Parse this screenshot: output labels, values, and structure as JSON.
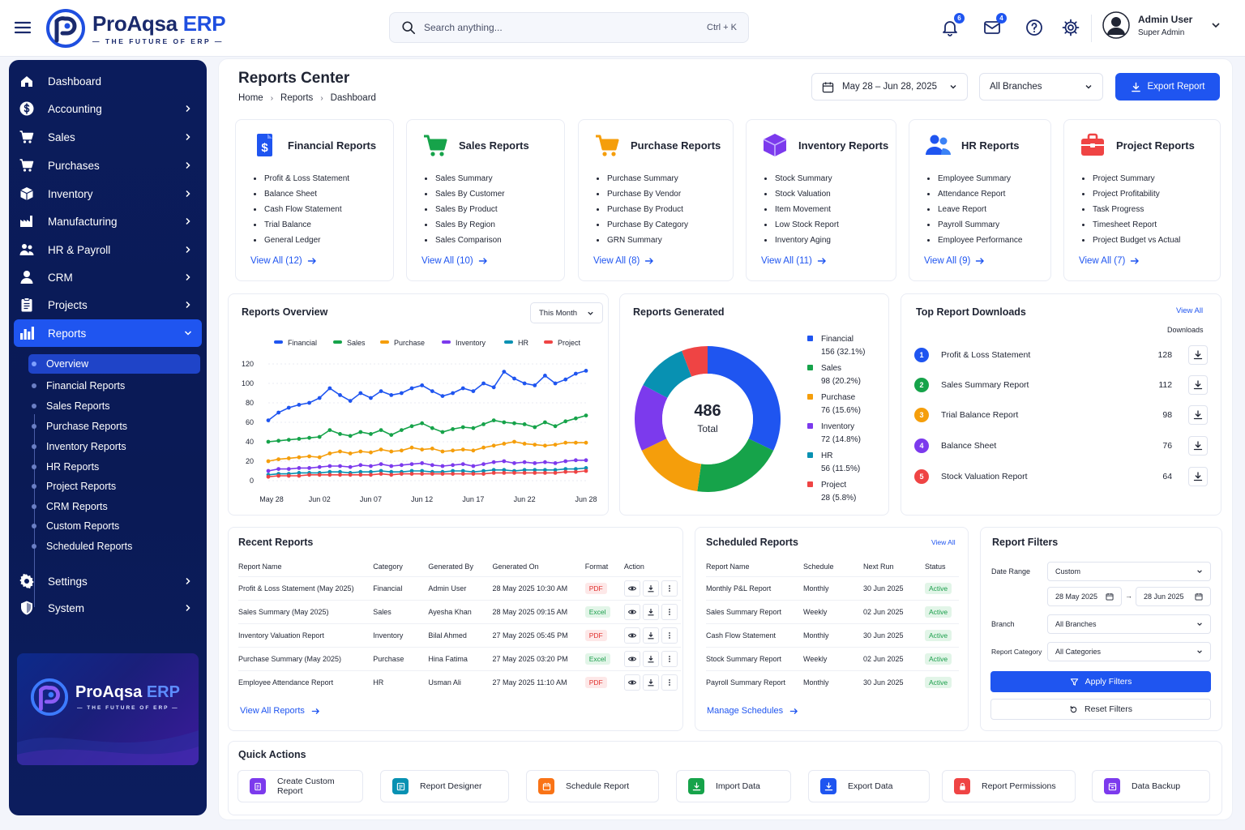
{
  "app": {
    "brand_main": "ProAqsa",
    "brand_accent": "ERP",
    "tagline": "— THE FUTURE OF ERP —"
  },
  "search": {
    "placeholder": "Search anything...",
    "shortcut": "Ctrl + K"
  },
  "notifications": {
    "bell_count": "6",
    "mail_count": "4"
  },
  "user": {
    "name": "Admin User",
    "role": "Super Admin"
  },
  "sidebar": {
    "items": [
      {
        "label": "Dashboard",
        "icon": "home-icon"
      },
      {
        "label": "Accounting",
        "icon": "dollar-icon"
      },
      {
        "label": "Sales",
        "icon": "cart-icon"
      },
      {
        "label": "Purchases",
        "icon": "cart-icon"
      },
      {
        "label": "Inventory",
        "icon": "box-icon"
      },
      {
        "label": "Manufacturing",
        "icon": "factory-icon"
      },
      {
        "label": "HR & Payroll",
        "icon": "people-icon"
      },
      {
        "label": "CRM",
        "icon": "person-icon"
      },
      {
        "label": "Projects",
        "icon": "clipboard-icon"
      },
      {
        "label": "Reports",
        "icon": "bar-chart-icon"
      }
    ],
    "reports_sub": [
      "Overview",
      "Financial Reports",
      "Sales Reports",
      "Purchase Reports",
      "Inventory Reports",
      "HR Reports",
      "Project Reports",
      "CRM Reports",
      "Custom Reports",
      "Scheduled Reports"
    ],
    "bottom_items": [
      {
        "label": "Settings",
        "icon": "gear-icon"
      },
      {
        "label": "System",
        "icon": "shield-icon"
      }
    ]
  },
  "page": {
    "title": "Reports Center",
    "breadcrumb": [
      "Home",
      "Reports",
      "Dashboard"
    ]
  },
  "controls": {
    "date_range": "May 28 – Jun 28, 2025",
    "branch": "All Branches",
    "export": "Export Report"
  },
  "report_cards": [
    {
      "title": "Financial Reports",
      "color": "#1f55f0",
      "items": [
        "Profit & Loss Statement",
        "Balance Sheet",
        "Cash Flow Statement",
        "Trial Balance",
        "General Ledger"
      ],
      "view_all": "View All (12)"
    },
    {
      "title": "Sales Reports",
      "color": "#16a34a",
      "items": [
        "Sales Summary",
        "Sales By Customer",
        "Sales By Product",
        "Sales By Region",
        "Sales Comparison"
      ],
      "view_all": "View All (10)"
    },
    {
      "title": "Purchase Reports",
      "color": "#f59e0b",
      "items": [
        "Purchase Summary",
        "Purchase By Vendor",
        "Purchase By Product",
        "Purchase By Category",
        "GRN Summary"
      ],
      "view_all": "View All (8)"
    },
    {
      "title": "Inventory Reports",
      "color": "#7c3aed",
      "items": [
        "Stock Summary",
        "Stock Valuation",
        "Item Movement",
        "Low Stock Report",
        "Inventory Aging"
      ],
      "view_all": "View All (11)"
    },
    {
      "title": "HR Reports",
      "color": "#1f55f0",
      "items": [
        "Employee Summary",
        "Attendance Report",
        "Leave Report",
        "Payroll Summary",
        "Employee Performance"
      ],
      "view_all": "View All (9)"
    },
    {
      "title": "Project Reports",
      "color": "#ef4444",
      "items": [
        "Project Summary",
        "Project Profitability",
        "Task Progress",
        "Timesheet Report",
        "Project Budget vs Actual"
      ],
      "view_all": "View All (7)"
    }
  ],
  "overview": {
    "title": "Reports Overview",
    "period": "This Month"
  },
  "chart_data": [
    {
      "type": "line",
      "title": "Reports Overview",
      "x": [
        "May 28",
        "May 29",
        "May 30",
        "May 31",
        "Jun 01",
        "Jun 02",
        "Jun 03",
        "Jun 04",
        "Jun 05",
        "Jun 06",
        "Jun 07",
        "Jun 08",
        "Jun 09",
        "Jun 10",
        "Jun 11",
        "Jun 12",
        "Jun 13",
        "Jun 14",
        "Jun 15",
        "Jun 16",
        "Jun 17",
        "Jun 18",
        "Jun 19",
        "Jun 20",
        "Jun 21",
        "Jun 22",
        "Jun 23",
        "Jun 24",
        "Jun 25",
        "Jun 26",
        "Jun 27",
        "Jun 28"
      ],
      "x_ticks": [
        "May 28",
        "Jun 02",
        "Jun 07",
        "Jun 12",
        "Jun 17",
        "Jun 22",
        "Jun 28"
      ],
      "y_ticks": [
        0,
        20,
        40,
        60,
        80,
        100,
        120
      ],
      "ylim": [
        0,
        120
      ],
      "legend_position": "top",
      "series": [
        {
          "name": "Financial",
          "color": "#1f55f0",
          "values": [
            62,
            70,
            75,
            78,
            80,
            85,
            95,
            88,
            82,
            90,
            85,
            92,
            88,
            90,
            95,
            98,
            92,
            87,
            90,
            95,
            92,
            100,
            96,
            112,
            105,
            100,
            98,
            108,
            100,
            104,
            110,
            113
          ]
        },
        {
          "name": "Sales",
          "color": "#16a34a",
          "values": [
            40,
            41,
            42,
            43,
            44,
            45,
            52,
            48,
            46,
            50,
            48,
            52,
            47,
            52,
            56,
            59,
            54,
            50,
            53,
            55,
            54,
            58,
            62,
            60,
            59,
            58,
            55,
            60,
            56,
            61,
            64,
            67
          ]
        },
        {
          "name": "Purchase",
          "color": "#f59e0b",
          "values": [
            20,
            22,
            23,
            24,
            25,
            24,
            28,
            30,
            28,
            30,
            29,
            32,
            30,
            31,
            34,
            32,
            33,
            30,
            31,
            32,
            31,
            34,
            36,
            38,
            40,
            38,
            37,
            36,
            37,
            39,
            39,
            39
          ]
        },
        {
          "name": "Inventory",
          "color": "#7c3aed",
          "values": [
            10,
            12,
            12,
            13,
            13,
            14,
            15,
            15,
            14,
            16,
            15,
            17,
            15,
            16,
            17,
            18,
            16,
            15,
            16,
            17,
            15,
            17,
            19,
            20,
            18,
            19,
            18,
            19,
            18,
            20,
            21,
            21
          ]
        },
        {
          "name": "HR",
          "color": "#0891b2",
          "values": [
            6,
            7,
            7,
            8,
            8,
            8,
            9,
            9,
            8,
            9,
            9,
            10,
            9,
            9,
            10,
            10,
            9,
            9,
            10,
            10,
            9,
            10,
            11,
            11,
            10,
            11,
            11,
            11,
            11,
            12,
            12,
            13
          ]
        },
        {
          "name": "Project",
          "color": "#ef4444",
          "values": [
            4,
            5,
            5,
            5,
            6,
            6,
            6,
            6,
            6,
            6,
            6,
            7,
            6,
            7,
            7,
            7,
            7,
            7,
            7,
            7,
            7,
            7,
            8,
            8,
            8,
            8,
            8,
            8,
            8,
            9,
            9,
            10
          ]
        }
      ]
    },
    {
      "type": "pie",
      "title": "Reports Generated",
      "center_value": "486",
      "center_label": "Total",
      "slices": [
        {
          "name": "Financial",
          "value": 156,
          "percent": "32.1%",
          "color": "#1f55f0"
        },
        {
          "name": "Sales",
          "value": 98,
          "percent": "20.2%",
          "color": "#16a34a"
        },
        {
          "name": "Purchase",
          "value": 76,
          "percent": "15.6%",
          "color": "#f59e0b"
        },
        {
          "name": "Inventory",
          "value": 72,
          "percent": "14.8%",
          "color": "#7c3aed"
        },
        {
          "name": "HR",
          "value": 56,
          "percent": "11.5%",
          "color": "#0891b2"
        },
        {
          "name": "Project",
          "value": 28,
          "percent": "5.8%",
          "color": "#ef4444"
        }
      ]
    }
  ],
  "top_downloads": {
    "title": "Top Report Downloads",
    "view_all": "View All",
    "col_header": "Downloads",
    "rows": [
      {
        "rank": "1",
        "name": "Profit & Loss Statement",
        "count": "128",
        "color": "#1f55f0"
      },
      {
        "rank": "2",
        "name": "Sales Summary Report",
        "count": "112",
        "color": "#16a34a"
      },
      {
        "rank": "3",
        "name": "Trial Balance Report",
        "count": "98",
        "color": "#f59e0b"
      },
      {
        "rank": "4",
        "name": "Balance Sheet",
        "count": "76",
        "color": "#7c3aed"
      },
      {
        "rank": "5",
        "name": "Stock Valuation Report",
        "count": "64",
        "color": "#ef4444"
      }
    ]
  },
  "recent": {
    "title": "Recent Reports",
    "headers": [
      "Report Name",
      "Category",
      "Generated By",
      "Generated On",
      "Format",
      "Action"
    ],
    "rows": [
      [
        "Profit & Loss Statement (May 2025)",
        "Financial",
        "Admin User",
        "28 May 2025 10:30 AM",
        "PDF"
      ],
      [
        "Sales Summary (May 2025)",
        "Sales",
        "Ayesha Khan",
        "28 May 2025 09:15 AM",
        "Excel"
      ],
      [
        "Inventory Valuation Report",
        "Inventory",
        "Bilal Ahmed",
        "27 May 2025 05:45 PM",
        "PDF"
      ],
      [
        "Purchase Summary (May 2025)",
        "Purchase",
        "Hina Fatima",
        "27 May 2025 03:20 PM",
        "Excel"
      ],
      [
        "Employee Attendance Report",
        "HR",
        "Usman Ali",
        "27 May 2025 11:10 AM",
        "PDF"
      ]
    ],
    "view_all": "View All Reports"
  },
  "scheduled": {
    "title": "Scheduled Reports",
    "view_all": "View All",
    "headers": [
      "Report Name",
      "Schedule",
      "Next Run",
      "Status"
    ],
    "rows": [
      [
        "Monthly P&L Report",
        "Monthly",
        "30 Jun 2025",
        "Active"
      ],
      [
        "Sales Summary Report",
        "Weekly",
        "02 Jun 2025",
        "Active"
      ],
      [
        "Cash Flow Statement",
        "Monthly",
        "30 Jun 2025",
        "Active"
      ],
      [
        "Stock Summary Report",
        "Weekly",
        "02 Jun 2025",
        "Active"
      ],
      [
        "Payroll Summary Report",
        "Monthly",
        "30 Jun 2025",
        "Active"
      ]
    ],
    "manage": "Manage Schedules"
  },
  "filters": {
    "title": "Report Filters",
    "date_range_label": "Date Range",
    "date_range_value": "Custom",
    "from": "28 May 2025",
    "to": "28 Jun 2025",
    "branch_label": "Branch",
    "branch_value": "All Branches",
    "category_label": "Report Category",
    "category_value": "All Categories",
    "apply": "Apply Filters",
    "reset": "Reset Filters"
  },
  "quick_actions": {
    "title": "Quick Actions",
    "items": [
      {
        "label": "Create Custom Report",
        "color": "#7c3aed"
      },
      {
        "label": "Report Designer",
        "color": "#0891b2"
      },
      {
        "label": "Schedule Report",
        "color": "#f97316"
      },
      {
        "label": "Import Data",
        "color": "#16a34a"
      },
      {
        "label": "Export Data",
        "color": "#1f55f0"
      },
      {
        "label": "Report Permissions",
        "color": "#ef4444"
      },
      {
        "label": "Data Backup",
        "color": "#7c3aed"
      }
    ]
  }
}
